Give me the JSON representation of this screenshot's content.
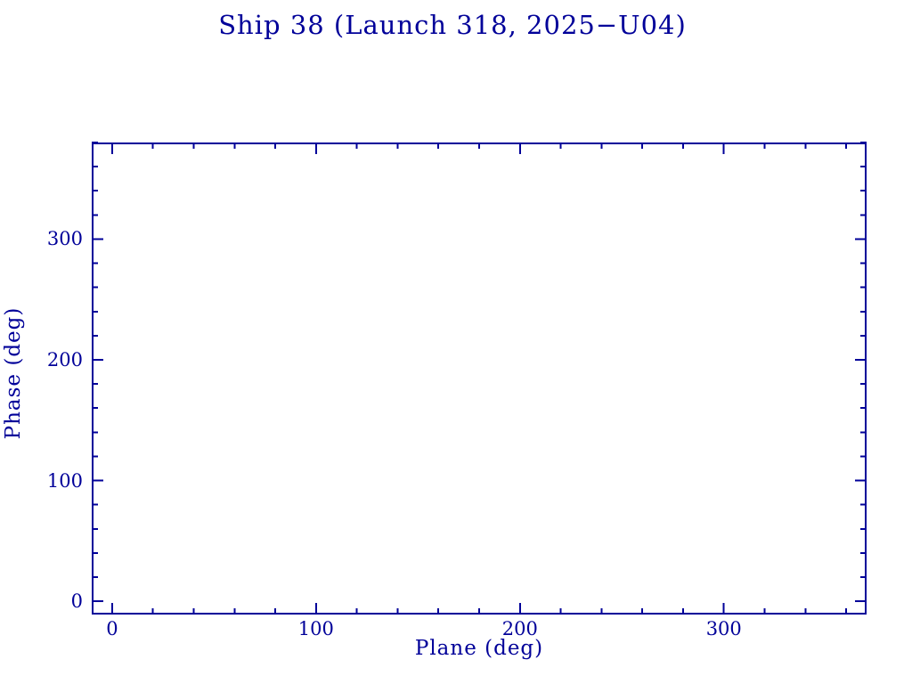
{
  "colors": {
    "plot": "#000099",
    "background": "#ffffff"
  },
  "chart_data": {
    "type": "scatter",
    "title": "Ship 38 (Launch 318, 2025−U04)",
    "xlabel": "Plane (deg)",
    "ylabel": "Phase (deg)",
    "xlim": [
      -10,
      370
    ],
    "ylim": [
      -11,
      380
    ],
    "x_major_ticks": [
      0,
      100,
      200,
      300
    ],
    "x_major_tick_labels": [
      "0",
      "100",
      "200",
      "300"
    ],
    "y_major_ticks": [
      0,
      100,
      200,
      300
    ],
    "y_major_tick_labels": [
      "0",
      "100",
      "200",
      "300"
    ],
    "x_minor_step": 20,
    "y_minor_step": 20,
    "tick_direction": "in",
    "tick_sides": [
      "top",
      "bottom",
      "left",
      "right"
    ],
    "grid": false,
    "legend": null,
    "series": [],
    "notes": "Empty axes frame; no data points plotted."
  }
}
